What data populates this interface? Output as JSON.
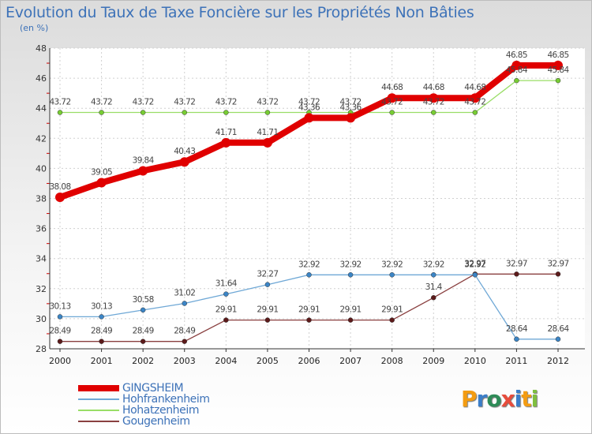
{
  "header": {
    "title": "Evolution du Taux de Taxe Foncière sur les Propriétés Non Bâties",
    "unit": "(en %)"
  },
  "logo": {
    "letters": [
      "P",
      "r",
      "o",
      "x",
      "i",
      "t",
      "i"
    ],
    "colors": [
      "#f39c12",
      "#3b7ec9",
      "#2e8b57",
      "#e74c3c",
      "#3b7ec9",
      "#f39c12",
      "#7fbf3f"
    ]
  },
  "chart_data": {
    "type": "line",
    "title": "Evolution du Taux de Taxe Foncière sur les Propriétés Non Bâties",
    "ylabel": "(en %)",
    "xlabel": "",
    "ylim": [
      28,
      48
    ],
    "yticks": [
      28,
      30,
      32,
      34,
      36,
      38,
      40,
      42,
      44,
      46,
      48
    ],
    "categories": [
      "2000",
      "2001",
      "2002",
      "2003",
      "2004",
      "2005",
      "2006",
      "2007",
      "2008",
      "2009",
      "2010",
      "2011",
      "2012"
    ],
    "grid": true,
    "legend": "bottom-left",
    "series": [
      {
        "name": "GINGSHEIM",
        "color": "#e00000",
        "marker": "#e00000",
        "width": 8,
        "markerSize": 6,
        "values": [
          38.08,
          39.05,
          39.84,
          40.43,
          41.71,
          41.71,
          43.36,
          43.36,
          44.68,
          44.68,
          44.68,
          46.85,
          46.85
        ],
        "labels": [
          "38.08",
          "39.05",
          "39.84",
          "40.43",
          "41.71",
          "41.71",
          "43.36",
          "43.36",
          "44.68",
          "44.68",
          "44.68",
          "46.85",
          "46.85"
        ]
      },
      {
        "name": "Hohfrankenheim",
        "color": "#6fa8d6",
        "marker": "#3b85c6",
        "width": 1.3,
        "markerSize": 3,
        "values": [
          30.13,
          30.13,
          30.58,
          31.02,
          31.64,
          32.27,
          32.92,
          32.92,
          32.92,
          32.92,
          32.92,
          28.64,
          28.64
        ],
        "labels": [
          "30.13",
          "30.13",
          "30.58",
          "31.02",
          "31.64",
          "32.27",
          "32.92",
          "32.92",
          "32.92",
          "32.92",
          "32.92",
          "28.64",
          "28.64"
        ]
      },
      {
        "name": "Hohatzenheim",
        "color": "#99dd66",
        "marker": "#77cc33",
        "width": 1.3,
        "markerSize": 3,
        "values": [
          43.72,
          43.72,
          43.72,
          43.72,
          43.72,
          43.72,
          43.72,
          43.72,
          43.72,
          43.72,
          43.72,
          45.84,
          45.84
        ],
        "labels": [
          "43.72",
          "43.72",
          "43.72",
          "43.72",
          "43.72",
          "43.72",
          "43.72",
          "43.72",
          "43.72",
          "43.72",
          "43.72",
          "45.84",
          "45.84"
        ]
      },
      {
        "name": "Gougenheim",
        "color": "#8a4040",
        "marker": "#5c1a1a",
        "width": 1.3,
        "markerSize": 3,
        "values": [
          28.49,
          28.49,
          28.49,
          28.49,
          29.91,
          29.91,
          29.91,
          29.91,
          29.91,
          31.4,
          32.97,
          32.97,
          32.97
        ],
        "labels": [
          "28.49",
          "28.49",
          "28.49",
          "28.49",
          "29.91",
          "29.91",
          "29.91",
          "29.91",
          "29.91",
          "31.4",
          "32.97",
          "32.97",
          "32.97"
        ]
      }
    ]
  }
}
